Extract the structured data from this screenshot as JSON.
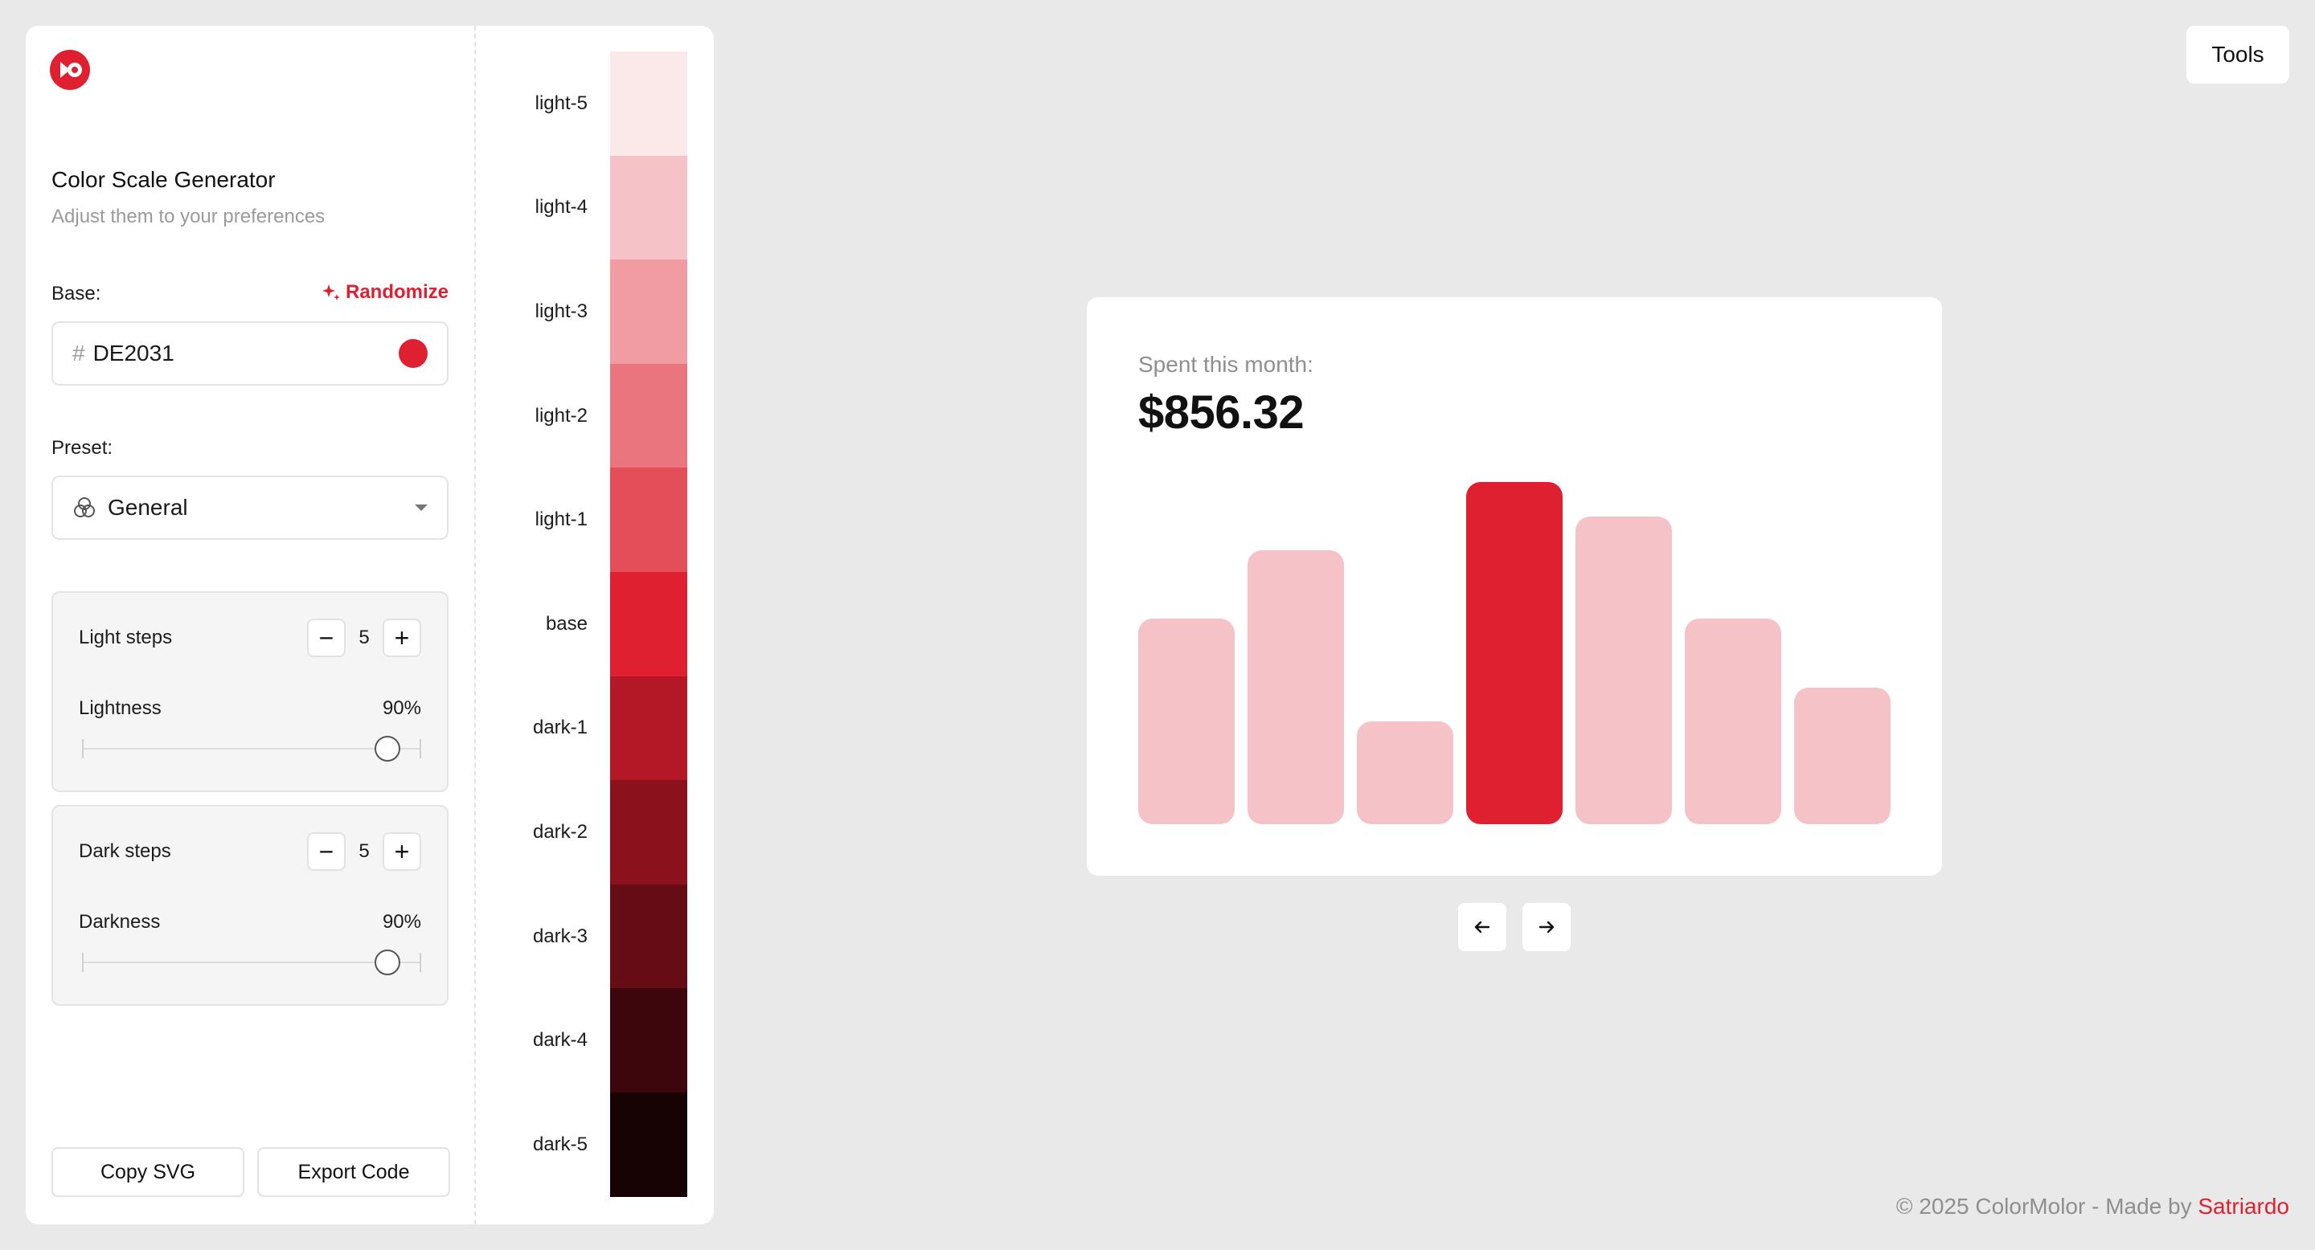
{
  "app": {
    "title": "Color Scale Generator",
    "subtitle": "Adjust them to your preferences"
  },
  "base": {
    "label": "Base:",
    "hash": "#",
    "value": "DE2031",
    "color": "#de2031",
    "randomize_label": "Randomize"
  },
  "preset": {
    "label": "Preset:",
    "value": "General",
    "icon": "circles-icon"
  },
  "light": {
    "steps_label": "Light steps",
    "steps": "5",
    "lightness_label": "Lightness",
    "lightness": "90%",
    "lightness_value": 0.9
  },
  "dark": {
    "steps_label": "Dark steps",
    "steps": "5",
    "darkness_label": "Darkness",
    "darkness": "90%",
    "darkness_value": 0.9
  },
  "actions": {
    "copy_svg": "Copy SVG",
    "export_code": "Export Code"
  },
  "scale": [
    {
      "label": "light-5",
      "color": "#fbe8e9"
    },
    {
      "label": "light-4",
      "color": "#f5c3c7"
    },
    {
      "label": "light-3",
      "color": "#f09ca2"
    },
    {
      "label": "light-2",
      "color": "#eb757e"
    },
    {
      "label": "light-1",
      "color": "#e44e59"
    },
    {
      "label": "base",
      "color": "#de2031"
    },
    {
      "label": "dark-1",
      "color": "#b41827"
    },
    {
      "label": "dark-2",
      "color": "#8b111d"
    },
    {
      "label": "dark-3",
      "color": "#650c14"
    },
    {
      "label": "dark-4",
      "color": "#3c060c"
    },
    {
      "label": "dark-5",
      "color": "#170204"
    }
  ],
  "tools_label": "Tools",
  "preview": {
    "label": "Spent this month:",
    "value": "$856.32",
    "highlight_color": "#de2031",
    "muted_color": "#f5c3c7",
    "bars": [
      {
        "value": 0.6,
        "highlight": false
      },
      {
        "value": 0.8,
        "highlight": false
      },
      {
        "value": 0.3,
        "highlight": false
      },
      {
        "value": 1.0,
        "highlight": true
      },
      {
        "value": 0.9,
        "highlight": false
      },
      {
        "value": 0.6,
        "highlight": false
      },
      {
        "value": 0.4,
        "highlight": false
      }
    ]
  },
  "footer": {
    "text": "© 2025 ColorMolor - Made by ",
    "author": "Satriardo"
  }
}
